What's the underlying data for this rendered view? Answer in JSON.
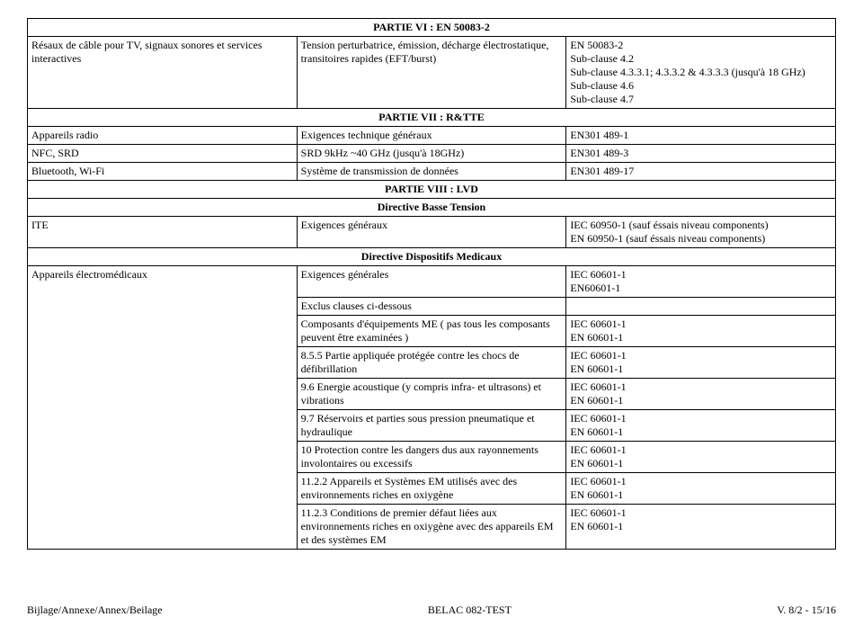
{
  "section6": {
    "header": "PARTIE VI : EN 50083-2",
    "row": {
      "col1": "Résaux de câble pour TV, signaux sonores et services interactives",
      "col2": "Tension perturbatrice, émission, décharge électrostatique, transitoires rapides (EFT/burst)",
      "col3": "EN 50083-2\nSub-clause 4.2\nSub-clause 4.3.3.1; 4.3.3.2 & 4.3.3.3 (jusqu'à 18 GHz)\nSub-clause 4.6\nSub-clause 4.7"
    }
  },
  "section7": {
    "header": "PARTIE VII : R&TTE",
    "rows": [
      {
        "c1": "Appareils radio",
        "c2": "Exigences technique généraux",
        "c3": "EN301 489-1"
      },
      {
        "c1": "NFC, SRD",
        "c2": "SRD 9kHz ~40 GHz (jusqu'à 18GHz)",
        "c3": "EN301 489-3"
      },
      {
        "c1": "Bluetooth, Wi-Fi",
        "c2": "Système de transmission de données",
        "c3": "EN301 489-17"
      }
    ]
  },
  "section8": {
    "header": "PARTIE VIII : LVD",
    "sub1": "Directive Basse Tension",
    "row1": {
      "c1": "ITE",
      "c2": "Exigences généraux",
      "c3": "IEC 60950-1 (sauf éssais niveau components)\nEN 60950-1 (sauf éssais niveau components)"
    },
    "sub2": "Directive Dispositifs Medicaux",
    "med_label": "Appareils électromédicaux",
    "med_rows": [
      {
        "c2": "Exigences générales",
        "c3": "IEC 60601-1\nEN60601-1"
      },
      {
        "c2": "Exclus clauses ci-dessous",
        "c3": ""
      },
      {
        "c2": "Composants d'équipements ME ( pas tous les composants peuvent être examinées )",
        "c3": "IEC 60601-1\nEN 60601-1"
      },
      {
        "c2": "8.5.5 Partie appliquée protégée contre les chocs de défibrillation",
        "c3": "IEC 60601-1\nEN 60601-1"
      },
      {
        "c2": "9.6 Energie acoustique (y compris infra- et ultrasons) et vibrations",
        "c3": "IEC 60601-1\nEN 60601-1"
      },
      {
        "c2": "9.7 Réservoirs et parties sous pression pneumatique et hydraulique",
        "c3": "IEC 60601-1\nEN 60601-1"
      },
      {
        "c2": "10 Protection contre les dangers dus aux rayonnements involontaires ou excessifs",
        "c3": "IEC 60601-1\nEN 60601-1"
      },
      {
        "c2": "11.2.2 Appareils et Systèmes EM utilisés avec des environnements riches en oxiygène",
        "c3": "IEC 60601-1\nEN 60601-1"
      },
      {
        "c2": "11.2.3 Conditions de premier défaut liées aux environnements riches en oxiygène avec des appareils EM et des systèmes EM",
        "c3": "IEC 60601-1\nEN 60601-1"
      }
    ]
  },
  "footer": {
    "left": "Bijlage/Annexe/Annex/Beilage",
    "center": "BELAC 082-TEST",
    "right": "V. 8/2 - 15/16"
  }
}
